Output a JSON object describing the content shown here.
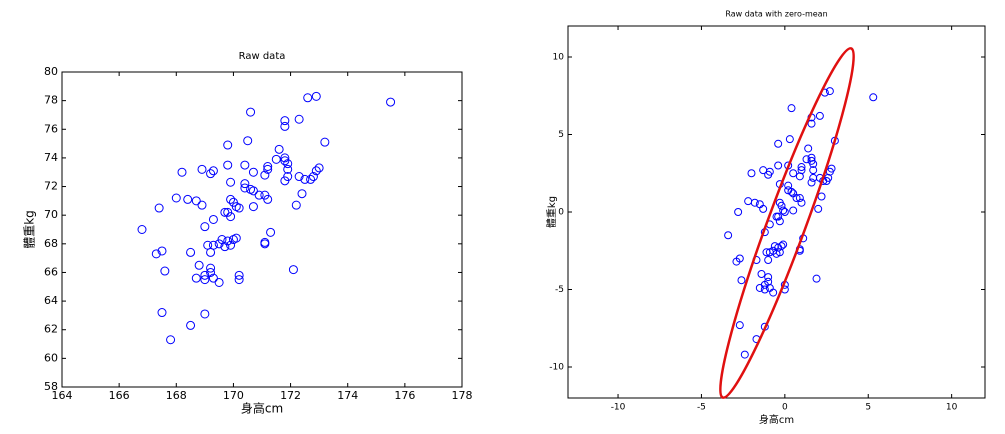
{
  "chart_data": [
    {
      "type": "scatter",
      "title": "Raw data",
      "x_label": "身高cm",
      "y_label": "體重kg",
      "color": "#0000ff",
      "xlim": [
        164,
        178
      ],
      "xticks": [
        164,
        166,
        168,
        170,
        172,
        174,
        176,
        178
      ],
      "ylim": [
        58,
        80
      ],
      "yticks": [
        58,
        60,
        62,
        64,
        66,
        68,
        70,
        72,
        74,
        76,
        78,
        80
      ],
      "x": [
        166.8,
        167.4,
        167.3,
        167.5,
        167.6,
        167.5,
        167.8,
        168.2,
        168.0,
        168.4,
        168.5,
        168.5,
        168.7,
        168.8,
        168.7,
        168.9,
        168.9,
        169.2,
        169.3,
        169.0,
        169.1,
        169.2,
        169.0,
        169.2,
        169.0,
        169.2,
        169.3,
        169.5,
        169.0,
        169.3,
        169.3,
        169.5,
        169.6,
        169.7,
        169.8,
        169.8,
        169.9,
        169.9,
        169.8,
        169.9,
        170.0,
        169.7,
        169.8,
        169.9,
        170.1,
        170.2,
        170.2,
        170.1,
        170.0,
        170.2,
        170.4,
        170.4,
        170.4,
        170.5,
        170.6,
        170.6,
        170.7,
        170.7,
        170.7,
        170.9,
        171.1,
        171.1,
        171.3,
        171.2,
        171.1,
        171.1,
        171.2,
        171.2,
        171.5,
        171.6,
        171.8,
        171.8,
        171.8,
        171.8,
        171.9,
        171.9,
        171.9,
        171.8,
        172.1,
        172.2,
        172.3,
        172.3,
        172.4,
        172.5,
        172.6,
        172.7,
        172.8,
        172.9,
        172.9,
        173.0,
        173.2,
        175.5
      ],
      "values": [
        69.0,
        70.5,
        67.3,
        67.5,
        66.1,
        63.2,
        61.3,
        73.0,
        71.2,
        71.1,
        67.4,
        62.3,
        65.6,
        66.5,
        71.0,
        70.7,
        73.2,
        72.9,
        73.1,
        69.2,
        67.9,
        67.4,
        65.8,
        66.0,
        65.5,
        66.3,
        65.6,
        65.3,
        63.1,
        69.7,
        67.9,
        68.0,
        68.3,
        70.2,
        74.9,
        70.2,
        71.1,
        72.3,
        73.5,
        69.9,
        68.3,
        67.8,
        68.2,
        67.9,
        68.4,
        65.5,
        65.8,
        70.6,
        70.9,
        70.5,
        72.2,
        73.5,
        71.9,
        75.2,
        71.8,
        77.2,
        70.6,
        73.0,
        71.7,
        71.4,
        68.1,
        68.0,
        68.8,
        73.2,
        72.8,
        71.4,
        71.1,
        73.4,
        73.9,
        74.6,
        76.6,
        76.2,
        74.0,
        73.8,
        73.6,
        73.2,
        72.7,
        72.4,
        66.2,
        70.7,
        72.7,
        76.7,
        71.5,
        72.5,
        78.2,
        72.5,
        72.7,
        73.1,
        78.3,
        73.3,
        75.1,
        77.9
      ]
    },
    {
      "type": "scatter",
      "title": "Raw data with zero-mean",
      "x_label": "身高cm",
      "y_label": "體重kg",
      "color": "#0000ff",
      "xlim": [
        -13,
        12
      ],
      "xticks": [
        -10,
        -5,
        0,
        5,
        10
      ],
      "ylim": [
        -12,
        12
      ],
      "yticks": [
        -10,
        -5,
        0,
        5,
        10
      ],
      "x": [
        -3.4,
        -2.8,
        -2.9,
        -2.7,
        -2.6,
        -2.7,
        -2.4,
        -2.0,
        -2.2,
        -1.8,
        -1.7,
        -1.7,
        -1.5,
        -1.4,
        -1.5,
        -1.3,
        -1.3,
        -1.0,
        -0.9,
        -1.2,
        -1.1,
        -1.0,
        -1.2,
        -1.0,
        -1.2,
        -1.0,
        -0.9,
        -0.7,
        -1.2,
        -0.9,
        -0.9,
        -0.7,
        -0.6,
        -0.5,
        -0.4,
        -0.4,
        -0.3,
        -0.3,
        -0.4,
        -0.3,
        -0.2,
        -0.5,
        -0.4,
        -0.3,
        -0.1,
        0.0,
        0.0,
        -0.1,
        -0.2,
        0.0,
        0.2,
        0.2,
        0.2,
        0.3,
        0.4,
        0.4,
        0.5,
        0.5,
        0.5,
        0.7,
        0.9,
        0.9,
        1.1,
        1.0,
        0.9,
        0.9,
        1.0,
        1.0,
        1.3,
        1.4,
        1.6,
        1.6,
        1.6,
        1.6,
        1.7,
        1.7,
        1.7,
        1.6,
        1.9,
        2.0,
        2.1,
        2.1,
        2.2,
        2.3,
        2.4,
        2.5,
        2.6,
        2.7,
        2.7,
        2.8,
        3.0,
        5.3
      ],
      "values": [
        -1.5,
        0.0,
        -3.2,
        -3.0,
        -4.4,
        -7.3,
        -9.2,
        2.5,
        0.7,
        0.6,
        -3.1,
        -8.2,
        -4.9,
        -4.0,
        0.5,
        0.2,
        2.7,
        2.4,
        2.6,
        -1.3,
        -2.6,
        -3.1,
        -4.7,
        -4.5,
        -5.0,
        -4.2,
        -4.9,
        -5.2,
        -7.4,
        -0.8,
        -2.6,
        -2.5,
        -2.2,
        -0.3,
        4.4,
        -0.3,
        0.6,
        1.8,
        3.0,
        -0.6,
        -2.2,
        -2.7,
        -2.3,
        -2.6,
        -2.1,
        -5.0,
        -4.7,
        0.1,
        0.4,
        0.0,
        1.7,
        3.0,
        1.4,
        4.7,
        1.3,
        6.7,
        0.1,
        2.5,
        1.2,
        0.9,
        -2.4,
        -2.5,
        -1.7,
        2.7,
        2.3,
        0.9,
        0.6,
        2.9,
        3.4,
        4.1,
        6.1,
        5.7,
        3.5,
        3.3,
        3.1,
        2.7,
        2.2,
        1.9,
        -4.3,
        0.2,
        2.2,
        6.2,
        1.0,
        2.0,
        7.7,
        2.0,
        2.2,
        2.6,
        7.8,
        2.8,
        4.6,
        7.4
      ]
    }
  ]
}
